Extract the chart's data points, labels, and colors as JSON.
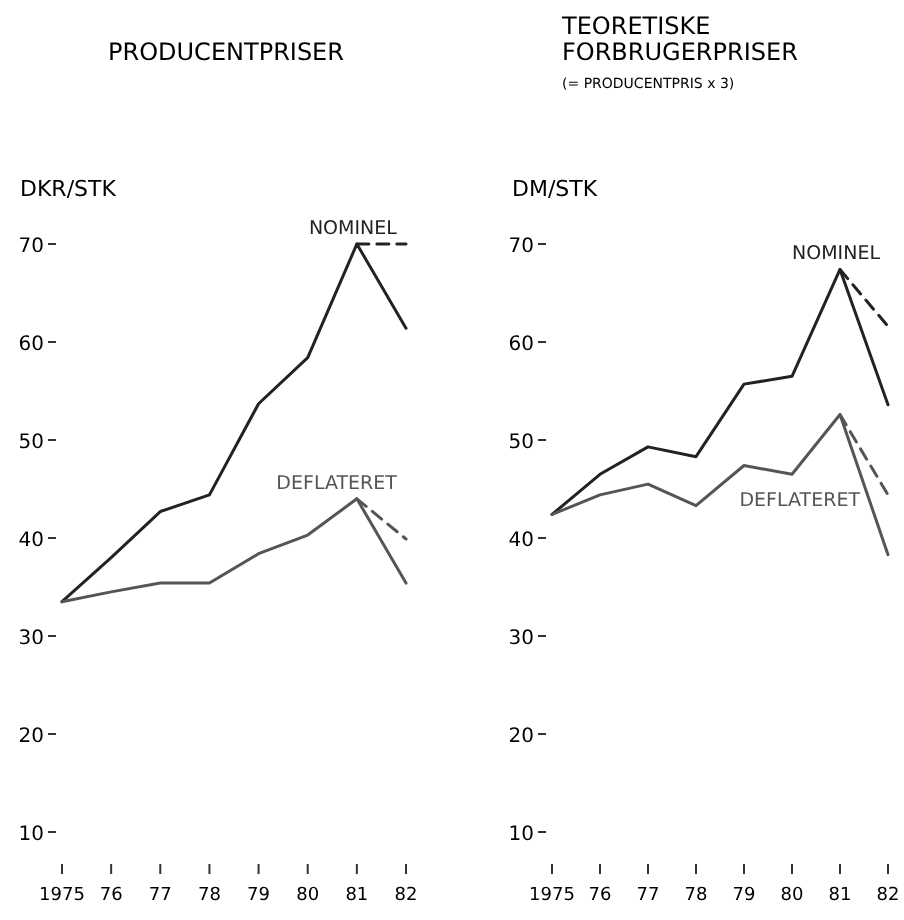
{
  "chart_data": [
    {
      "type": "line",
      "title": "PRODUCENTPRISER",
      "ylabel": "DKR/STK",
      "categories": [
        "1975",
        "76",
        "77",
        "78",
        "79",
        "80",
        "81",
        "82"
      ],
      "ylim": [
        10,
        70
      ],
      "yticks": [
        10,
        20,
        30,
        40,
        50,
        60,
        70
      ],
      "legend": false,
      "grid": false,
      "marker": "none",
      "series": [
        {
          "name": "NOMINEL",
          "color": "#222222",
          "line_style": "solid",
          "values": [
            33.5,
            38,
            42.7,
            44.4,
            53.7,
            58.4,
            70,
            61.4
          ]
        },
        {
          "color": "#222222",
          "line_style": "dashed",
          "values": [
            null,
            null,
            null,
            null,
            null,
            null,
            70,
            70
          ]
        },
        {
          "name": "DEFLATERET",
          "color": "#555555",
          "line_style": "solid",
          "values": [
            33.5,
            34.5,
            35.4,
            35.4,
            38.4,
            40.3,
            44,
            35.4
          ]
        },
        {
          "color": "#555555",
          "line_style": "dashed",
          "values": [
            null,
            null,
            null,
            null,
            null,
            null,
            44,
            39.9
          ]
        }
      ]
    },
    {
      "type": "line",
      "title": "TEORETISKE FORBRUGERPRISER",
      "subtitle": "(= PRODUCENTPRIS x 3)",
      "ylabel": "DM/STK",
      "categories": [
        "1975",
        "76",
        "77",
        "78",
        "79",
        "80",
        "81",
        "82"
      ],
      "ylim": [
        10,
        70
      ],
      "yticks": [
        10,
        20,
        30,
        40,
        50,
        60,
        70
      ],
      "legend": false,
      "grid": false,
      "marker": "none",
      "series": [
        {
          "name": "NOMINEL",
          "color": "#222222",
          "line_style": "solid",
          "values": [
            42.4,
            46.5,
            49.3,
            48.3,
            55.7,
            56.5,
            67.4,
            53.6
          ]
        },
        {
          "color": "#222222",
          "line_style": "dashed",
          "values": [
            null,
            null,
            null,
            null,
            null,
            null,
            67.4,
            61.6
          ]
        },
        {
          "name": "DEFLATERET",
          "color": "#555555",
          "line_style": "solid",
          "values": [
            42.4,
            44.4,
            45.5,
            43.3,
            47.4,
            46.5,
            52.6,
            38.3
          ]
        },
        {
          "color": "#555555",
          "line_style": "dashed",
          "values": [
            null,
            null,
            null,
            null,
            null,
            null,
            52.6,
            44.4
          ]
        }
      ]
    }
  ]
}
